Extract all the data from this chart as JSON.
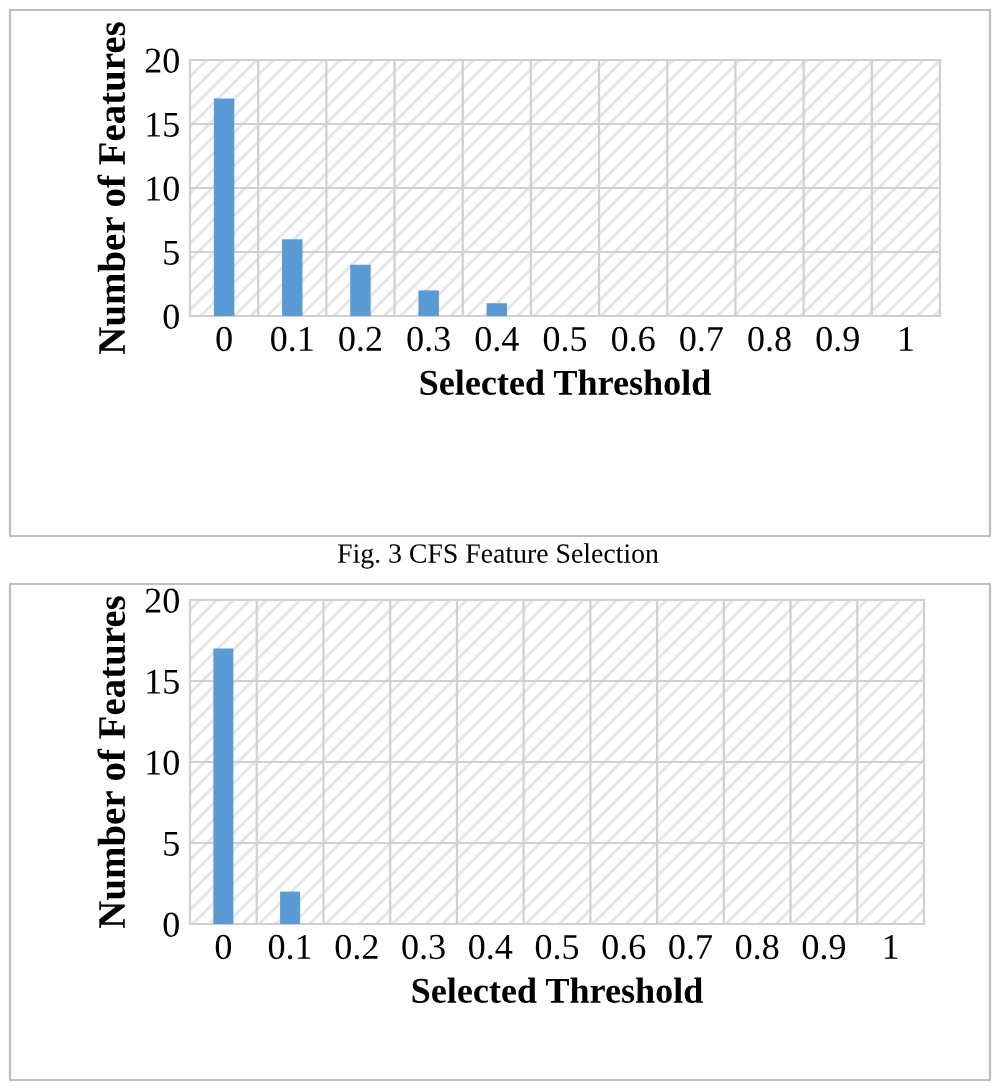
{
  "chart_data": [
    {
      "type": "bar",
      "categories": [
        "0",
        "0.1",
        "0.2",
        "0.3",
        "0.4",
        "0.5",
        "0.6",
        "0.7",
        "0.8",
        "0.9",
        "1"
      ],
      "values": [
        17,
        6,
        4,
        2,
        1,
        0,
        0,
        0,
        0,
        0,
        0
      ],
      "color": "#5b9bd5",
      "xlabel": "Selected Threshold",
      "ylabel": "Number of Features",
      "ylim": [
        0,
        20
      ],
      "yticks": [
        0,
        5,
        10,
        15,
        20
      ],
      "grid": true,
      "annotations": [
        "Fig. 3 CFS Feature Selection"
      ]
    },
    {
      "type": "bar",
      "categories": [
        "0",
        "0.1",
        "0.2",
        "0.3",
        "0.4",
        "0.5",
        "0.6",
        "0.7",
        "0.8",
        "0.9",
        "1"
      ],
      "values": [
        17,
        2,
        0,
        0,
        0,
        0,
        0,
        0,
        0,
        0,
        0
      ],
      "color": "#5b9bd5",
      "xlabel": "Selected Threshold",
      "ylabel": "Number of Features",
      "ylim": [
        0,
        20
      ],
      "yticks": [
        0,
        5,
        10,
        15,
        20
      ],
      "grid": true
    }
  ]
}
